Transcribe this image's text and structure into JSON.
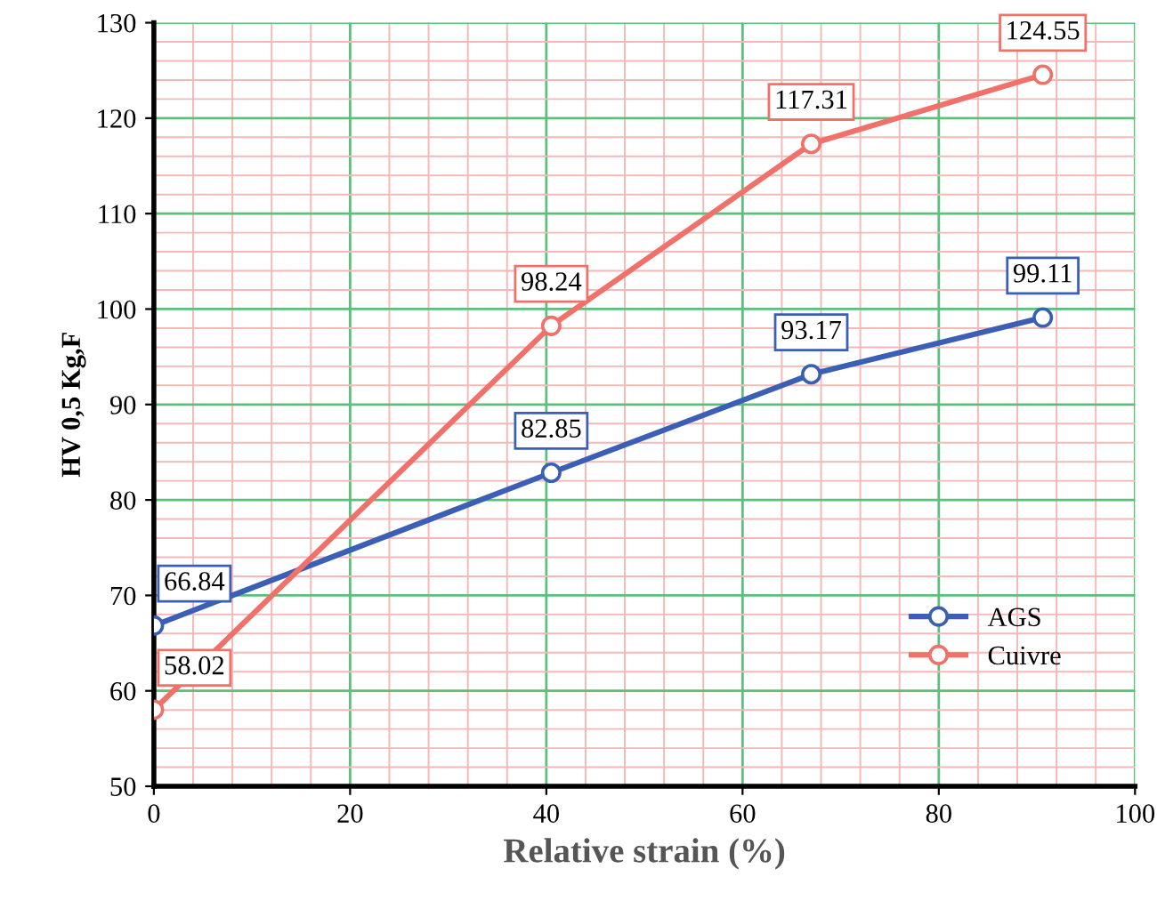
{
  "chart_data": {
    "type": "line",
    "xlabel": "Relative strain (%)",
    "ylabel": "HV 0,5 Kg,F",
    "xlim": [
      0,
      100
    ],
    "xticks": [
      0,
      {
        "value": 4,
        "label": null
      },
      {
        "value": 8,
        "label": null
      },
      {
        "value": 12,
        "label": null
      },
      {
        "value": 16,
        "label": null
      },
      20,
      {
        "value": 24,
        "label": null
      },
      {
        "value": 28,
        "label": null
      },
      {
        "value": 32,
        "label": null
      },
      {
        "value": 36,
        "label": null
      },
      40,
      {
        "value": 44,
        "label": null
      },
      {
        "value": 48,
        "label": null
      },
      {
        "value": 52,
        "label": null
      },
      {
        "value": 56,
        "label": null
      },
      60,
      {
        "value": 64,
        "label": null
      },
      {
        "value": 68,
        "label": null
      },
      {
        "value": 72,
        "label": null
      },
      {
        "value": 76,
        "label": null
      },
      80,
      {
        "value": 84,
        "label": null
      },
      {
        "value": 88,
        "label": null
      },
      {
        "value": 92,
        "label": null
      },
      {
        "value": 96,
        "label": null
      },
      100
    ],
    "ylim": [
      50,
      130
    ],
    "yticks": [
      50,
      {
        "value": 52,
        "label": null
      },
      {
        "value": 54,
        "label": null
      },
      {
        "value": 56,
        "label": null
      },
      {
        "value": 58,
        "label": null
      },
      60,
      {
        "value": 62,
        "label": null
      },
      {
        "value": 64,
        "label": null
      },
      {
        "value": 66,
        "label": null
      },
      {
        "value": 68,
        "label": null
      },
      70,
      {
        "value": 72,
        "label": null
      },
      {
        "value": 74,
        "label": null
      },
      {
        "value": 76,
        "label": null
      },
      {
        "value": 78,
        "label": null
      },
      80,
      {
        "value": 82,
        "label": null
      },
      {
        "value": 84,
        "label": null
      },
      {
        "value": 86,
        "label": null
      },
      {
        "value": 88,
        "label": null
      },
      90,
      {
        "value": 92,
        "label": null
      },
      {
        "value": 94,
        "label": null
      },
      {
        "value": 96,
        "label": null
      },
      {
        "value": 98,
        "label": null
      },
      100,
      {
        "value": 102,
        "label": null
      },
      {
        "value": 104,
        "label": null
      },
      {
        "value": 106,
        "label": null
      },
      {
        "value": 108,
        "label": null
      },
      110,
      {
        "value": 112,
        "label": null
      },
      {
        "value": 114,
        "label": null
      },
      {
        "value": 116,
        "label": null
      },
      {
        "value": 118,
        "label": null
      },
      120,
      {
        "value": 122,
        "label": null
      },
      {
        "value": 124,
        "label": null
      },
      {
        "value": 126,
        "label": null
      },
      {
        "value": 128,
        "label": null
      },
      130
    ],
    "grid": true,
    "legend": "lower right",
    "marker": "circle",
    "line_style": "solid",
    "data_labels": true,
    "series": [
      {
        "name": "AGS",
        "color": "#3a5fb5",
        "x": [
          0,
          40.5,
          67,
          90.6
        ],
        "values": [
          66.84,
          82.85,
          93.17,
          99.11
        ]
      },
      {
        "name": "Cuivre",
        "color": "#f0716a",
        "x": [
          0,
          40.5,
          67,
          90.6
        ],
        "values": [
          58.02,
          98.24,
          117.31,
          124.55
        ]
      }
    ]
  }
}
